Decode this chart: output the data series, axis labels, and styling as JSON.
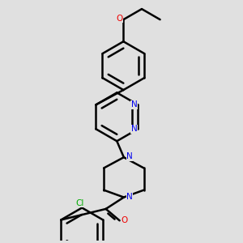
{
  "background_color": "#e0e0e0",
  "bond_color": "#000000",
  "n_color": "#0000ee",
  "o_color": "#ee0000",
  "cl_color": "#00aa00",
  "line_width": 1.8,
  "figsize": [
    3.0,
    3.0
  ],
  "dpi": 100,
  "xlim": [
    -1.6,
    1.8
  ],
  "ylim": [
    -2.2,
    4.0
  ]
}
